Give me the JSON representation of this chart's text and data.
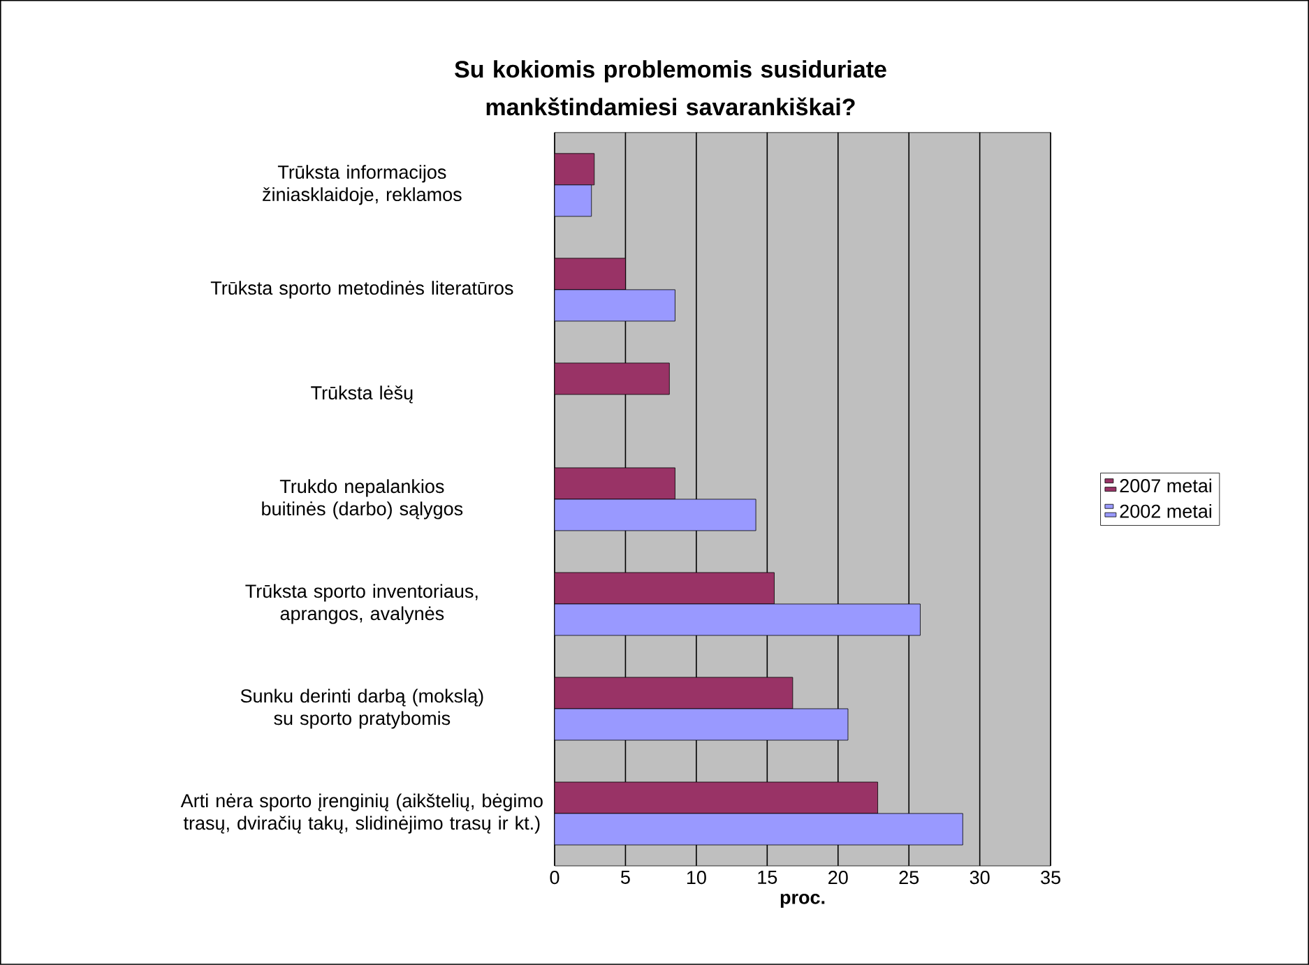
{
  "chart_data": {
    "type": "bar",
    "orientation": "horizontal",
    "title": "Su kokiomis problemomis susiduriate mankštindamiesi savarankiškai?",
    "xlabel": "proc.",
    "categories": [
      "Trūksta informacijos žiniasklaidoje, reklamos",
      "Trūksta sporto metodinės literatūros",
      "Trūksta lėšų",
      "Trukdo nepalankios buitinės (darbo) sąlygos",
      "Trūksta sporto inventoriaus, aprangos, avalynės",
      "Sunku derinti darbą (mokslą) su sporto pratybomis",
      "Arti nėra sporto įrenginių (aikštelių, bėgimo trasų, dviračių takų, slidinėjimo trasų ir kt.)"
    ],
    "series": [
      {
        "name": "2007 metai",
        "color": "#993366",
        "values": [
          2.8,
          5.0,
          8.1,
          8.5,
          15.5,
          16.8,
          22.8
        ]
      },
      {
        "name": "2002 metai",
        "color": "#9999ff",
        "values": [
          2.6,
          8.5,
          null,
          14.2,
          25.8,
          20.7,
          28.8
        ]
      }
    ],
    "xlim": [
      0,
      35
    ],
    "xticks": [
      0,
      5,
      10,
      15,
      20,
      25,
      30,
      35
    ],
    "grid": "x",
    "legend": "right"
  }
}
